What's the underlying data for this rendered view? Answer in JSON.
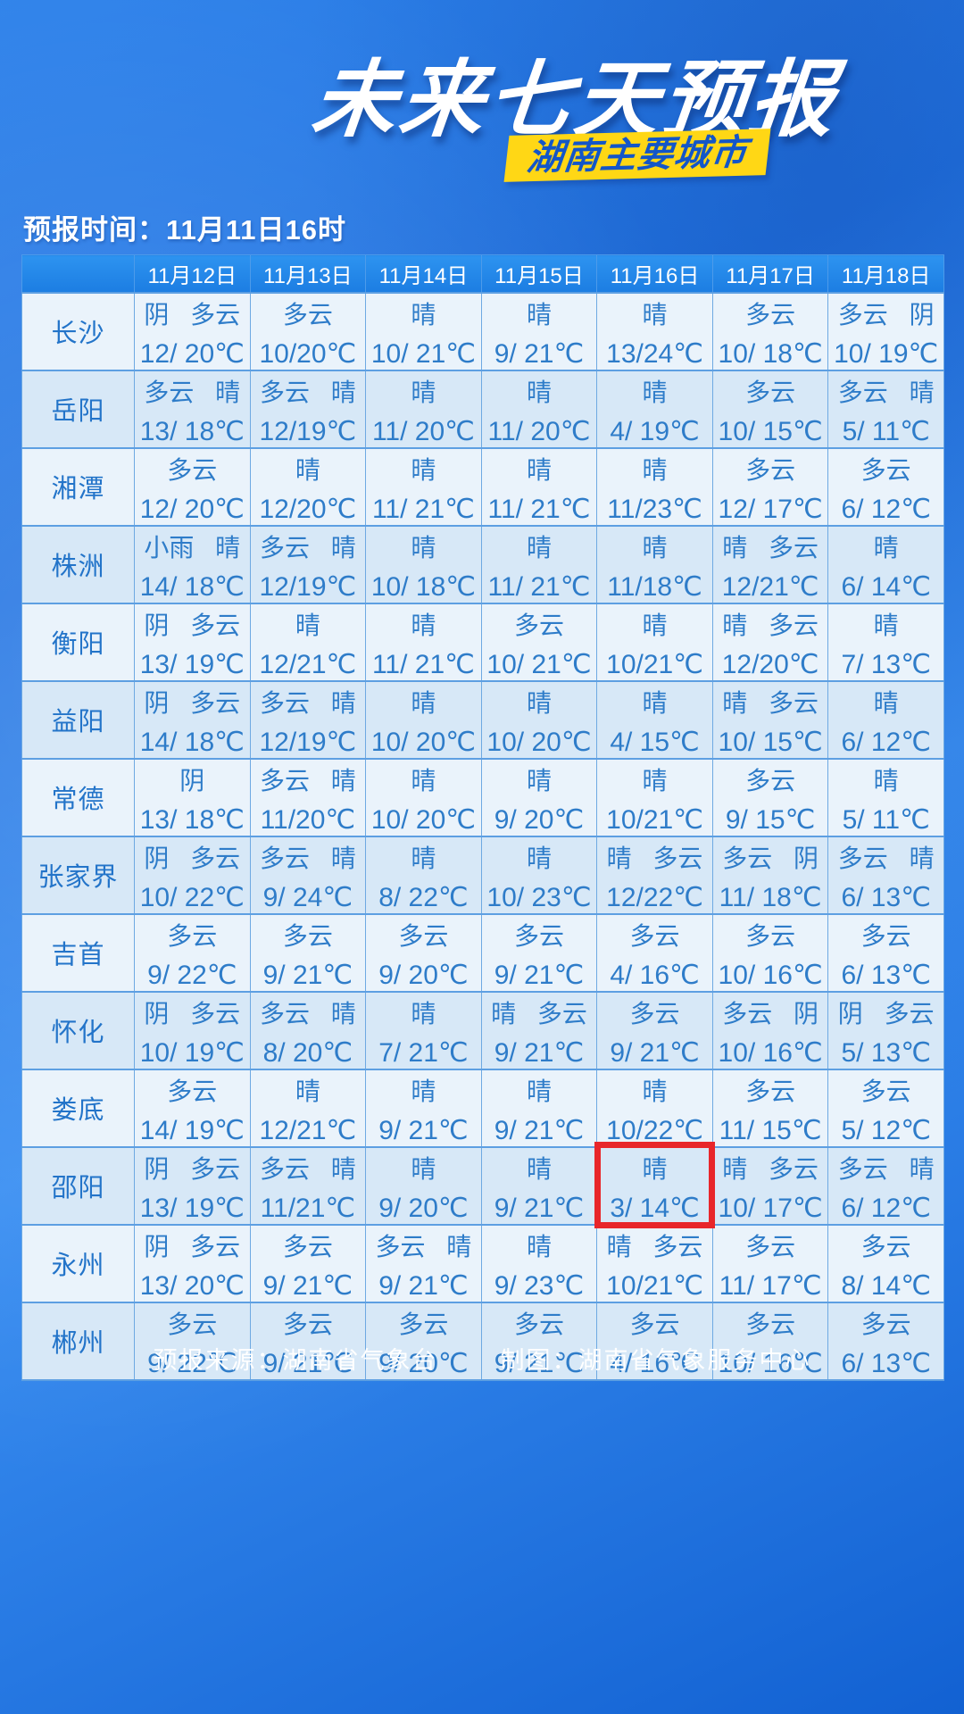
{
  "header": {
    "title": "未来七天预报",
    "badge": "湖南主要城市",
    "forecast_time": "预报时间：11月11日16时"
  },
  "footer": {
    "source": "预报来源：湖南省气象台",
    "credit": "制图：湖南省气象服务中心"
  },
  "colors": {
    "background_blue": "#2173e2",
    "header_row_blue": "#1e88e5",
    "row_light": "#eaf3fb",
    "row_dark": "#d7e8f7",
    "cell_text_blue": "#2e7cc9",
    "badge_bg": "#ffd715",
    "badge_text": "#1356c8",
    "highlight_red": "#e8262a"
  },
  "chart_data": {
    "type": "table",
    "title": "未来七天预报 湖南主要城市",
    "subtitle": "预报时间：11月11日16时",
    "columns": [
      "",
      "11月12日",
      "11月13日",
      "11月14日",
      "11月15日",
      "11月16日",
      "11月17日",
      "11月18日"
    ],
    "rows": [
      {
        "city": "长沙",
        "cells": [
          {
            "cond": "阴 多云",
            "temp": "12/ 20℃"
          },
          {
            "cond": "多云",
            "temp": "10/20℃"
          },
          {
            "cond": "晴",
            "temp": "10/ 21℃"
          },
          {
            "cond": "晴",
            "temp": "9/ 21℃"
          },
          {
            "cond": "晴",
            "temp": "13/24℃"
          },
          {
            "cond": "多云",
            "temp": "10/ 18℃"
          },
          {
            "cond": "多云 阴",
            "temp": "10/ 19℃"
          }
        ]
      },
      {
        "city": "岳阳",
        "cells": [
          {
            "cond": "多云 晴",
            "temp": "13/ 18℃"
          },
          {
            "cond": "多云 晴",
            "temp": "12/19℃"
          },
          {
            "cond": "晴",
            "temp": "11/ 20℃"
          },
          {
            "cond": "晴",
            "temp": "11/ 20℃"
          },
          {
            "cond": "晴",
            "temp": "4/ 19℃"
          },
          {
            "cond": "多云",
            "temp": "10/ 15℃"
          },
          {
            "cond": "多云 晴",
            "temp": "5/ 11℃"
          }
        ]
      },
      {
        "city": "湘潭",
        "cells": [
          {
            "cond": "多云",
            "temp": "12/ 20℃"
          },
          {
            "cond": "晴",
            "temp": "12/20℃"
          },
          {
            "cond": "晴",
            "temp": "11/ 21℃"
          },
          {
            "cond": "晴",
            "temp": "11/ 21℃"
          },
          {
            "cond": "晴",
            "temp": "11/23℃"
          },
          {
            "cond": "多云",
            "temp": "12/ 17℃"
          },
          {
            "cond": "多云",
            "temp": "6/ 12℃"
          }
        ]
      },
      {
        "city": "株洲",
        "cells": [
          {
            "cond": "小雨 晴",
            "temp": "14/ 18℃"
          },
          {
            "cond": "多云 晴",
            "temp": "12/19℃"
          },
          {
            "cond": "晴",
            "temp": "10/ 18℃"
          },
          {
            "cond": "晴",
            "temp": "11/ 21℃"
          },
          {
            "cond": "晴",
            "temp": "11/18℃"
          },
          {
            "cond": "晴 多云",
            "temp": "12/21℃"
          },
          {
            "cond": "晴",
            "temp": "6/ 14℃"
          }
        ]
      },
      {
        "city": "衡阳",
        "cells": [
          {
            "cond": "阴 多云",
            "temp": "13/ 19℃"
          },
          {
            "cond": "晴",
            "temp": "12/21℃"
          },
          {
            "cond": "晴",
            "temp": "11/ 21℃"
          },
          {
            "cond": "多云",
            "temp": "10/ 21℃"
          },
          {
            "cond": "晴",
            "temp": "10/21℃"
          },
          {
            "cond": "晴 多云",
            "temp": "12/20℃"
          },
          {
            "cond": "晴",
            "temp": "7/ 13℃"
          }
        ]
      },
      {
        "city": "益阳",
        "cells": [
          {
            "cond": "阴 多云",
            "temp": "14/ 18℃"
          },
          {
            "cond": "多云 晴",
            "temp": "12/19℃"
          },
          {
            "cond": "晴",
            "temp": "10/ 20℃"
          },
          {
            "cond": "晴",
            "temp": "10/ 20℃"
          },
          {
            "cond": "晴",
            "temp": "4/ 15℃"
          },
          {
            "cond": "晴 多云",
            "temp": "10/ 15℃"
          },
          {
            "cond": "晴",
            "temp": "6/ 12℃"
          }
        ]
      },
      {
        "city": "常德",
        "cells": [
          {
            "cond": "阴",
            "temp": "13/ 18℃"
          },
          {
            "cond": "多云 晴",
            "temp": "11/20℃"
          },
          {
            "cond": "晴",
            "temp": "10/ 20℃"
          },
          {
            "cond": "晴",
            "temp": "9/ 20℃"
          },
          {
            "cond": "晴",
            "temp": "10/21℃"
          },
          {
            "cond": "多云",
            "temp": "9/ 15℃"
          },
          {
            "cond": "晴",
            "temp": "5/ 11℃"
          }
        ]
      },
      {
        "city": "张家界",
        "cells": [
          {
            "cond": "阴 多云",
            "temp": "10/ 22℃"
          },
          {
            "cond": "多云 晴",
            "temp": "9/ 24℃"
          },
          {
            "cond": "晴",
            "temp": "8/ 22℃"
          },
          {
            "cond": "晴",
            "temp": "10/ 23℃"
          },
          {
            "cond": "晴 多云",
            "temp": "12/22℃"
          },
          {
            "cond": "多云 阴",
            "temp": "11/ 18℃"
          },
          {
            "cond": "多云 晴",
            "temp": "6/ 13℃"
          }
        ]
      },
      {
        "city": "吉首",
        "cells": [
          {
            "cond": "多云",
            "temp": "9/ 22℃"
          },
          {
            "cond": "多云",
            "temp": "9/ 21℃"
          },
          {
            "cond": "多云",
            "temp": "9/ 20℃"
          },
          {
            "cond": "多云",
            "temp": "9/ 21℃"
          },
          {
            "cond": "多云",
            "temp": "4/ 16℃"
          },
          {
            "cond": "多云",
            "temp": "10/ 16℃"
          },
          {
            "cond": "多云",
            "temp": "6/ 13℃"
          }
        ]
      },
      {
        "city": "怀化",
        "cells": [
          {
            "cond": "阴 多云",
            "temp": "10/ 19℃"
          },
          {
            "cond": "多云 晴",
            "temp": "8/ 20℃"
          },
          {
            "cond": "晴",
            "temp": "7/ 21℃"
          },
          {
            "cond": "晴 多云",
            "temp": "9/ 21℃"
          },
          {
            "cond": "多云",
            "temp": "9/ 21℃"
          },
          {
            "cond": "多云 阴",
            "temp": "10/ 16℃"
          },
          {
            "cond": "阴 多云",
            "temp": "5/ 13℃"
          }
        ]
      },
      {
        "city": "娄底",
        "cells": [
          {
            "cond": "多云",
            "temp": "14/ 19℃"
          },
          {
            "cond": "晴",
            "temp": "12/21℃"
          },
          {
            "cond": "晴",
            "temp": "9/ 21℃"
          },
          {
            "cond": "晴",
            "temp": "9/ 21℃"
          },
          {
            "cond": "晴",
            "temp": "10/22℃"
          },
          {
            "cond": "多云",
            "temp": "11/ 15℃"
          },
          {
            "cond": "多云",
            "temp": "5/ 12℃"
          }
        ]
      },
      {
        "city": "邵阳",
        "cells": [
          {
            "cond": "阴 多云",
            "temp": "13/ 19℃"
          },
          {
            "cond": "多云 晴",
            "temp": "11/21℃"
          },
          {
            "cond": "晴",
            "temp": "9/ 20℃"
          },
          {
            "cond": "晴",
            "temp": "9/ 21℃"
          },
          {
            "cond": "晴",
            "temp": "3/ 14℃"
          },
          {
            "cond": "晴 多云",
            "temp": "10/ 17℃"
          },
          {
            "cond": "多云 晴",
            "temp": "6/ 12℃"
          }
        ]
      },
      {
        "city": "永州",
        "cells": [
          {
            "cond": "阴 多云",
            "temp": "13/ 20℃"
          },
          {
            "cond": "多云",
            "temp": "9/ 21℃"
          },
          {
            "cond": "多云 晴",
            "temp": "9/ 21℃"
          },
          {
            "cond": "晴",
            "temp": "9/ 23℃"
          },
          {
            "cond": "晴 多云",
            "temp": "10/21℃"
          },
          {
            "cond": "多云",
            "temp": "11/ 17℃"
          },
          {
            "cond": "多云",
            "temp": "8/ 14℃"
          }
        ]
      },
      {
        "city": "郴州",
        "cells": [
          {
            "cond": "多云",
            "temp": "9/ 22℃"
          },
          {
            "cond": "多云",
            "temp": "9/ 21℃"
          },
          {
            "cond": "多云",
            "temp": "9/ 20℃"
          },
          {
            "cond": "多云",
            "temp": "9/ 21℃"
          },
          {
            "cond": "多云",
            "temp": "4/ 16℃"
          },
          {
            "cond": "多云",
            "temp": "10/ 16℃"
          },
          {
            "cond": "多云",
            "temp": "6/ 13℃"
          }
        ]
      }
    ],
    "highlight": {
      "city": "邵阳",
      "date": "11月16日",
      "row": 11,
      "col": 4,
      "note": "red box around 晴 3/ 14℃"
    },
    "legend_position": "none",
    "grid": true
  }
}
